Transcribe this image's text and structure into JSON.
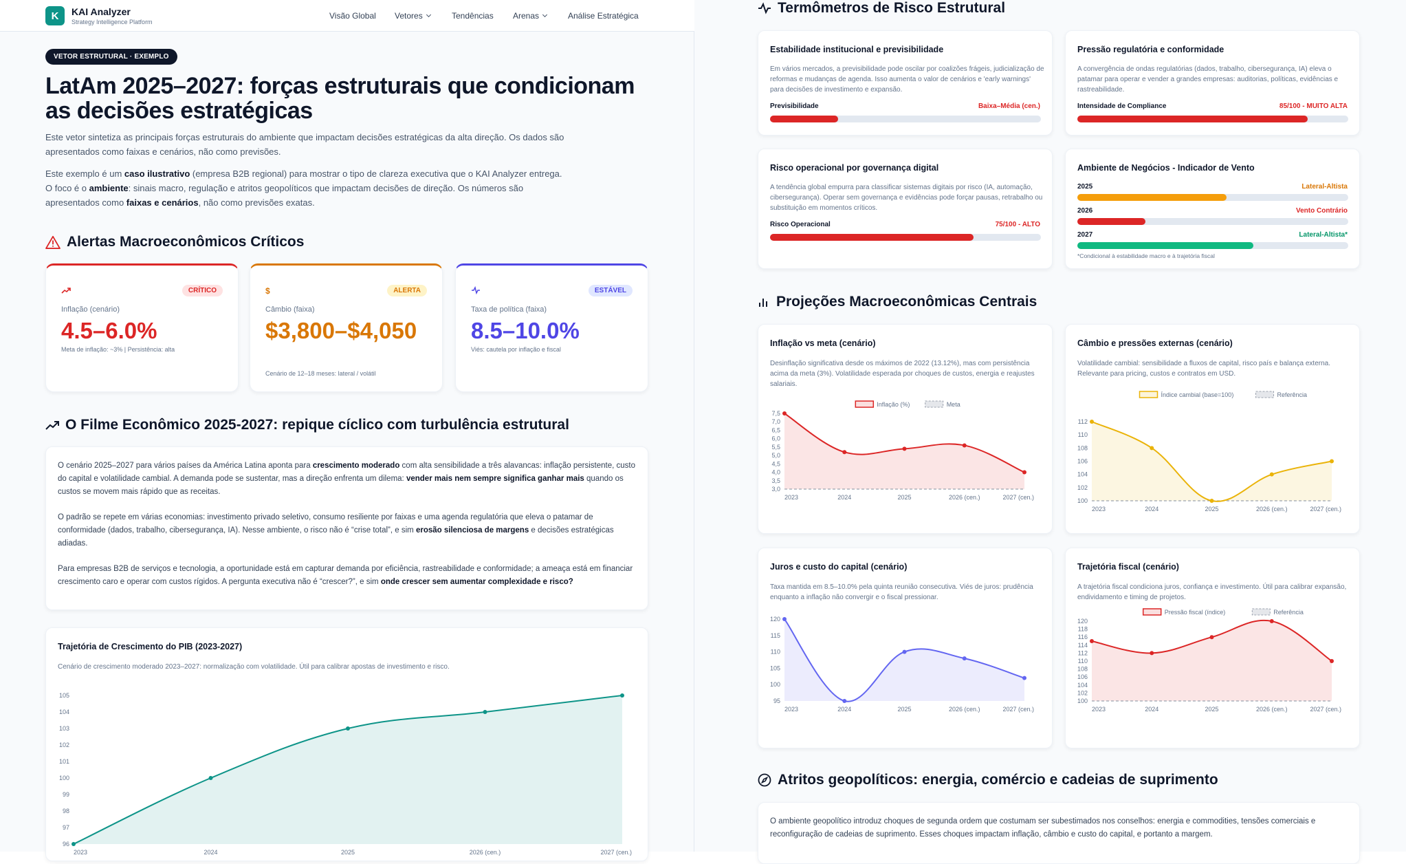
{
  "nav": {
    "brand": "KAI Analyzer",
    "subtitle": "Strategy Intelligence Platform",
    "logo_letter": "K",
    "items": [
      {
        "label": "Visão Global",
        "dropdown": false
      },
      {
        "label": "Vetores",
        "dropdown": true
      },
      {
        "label": "Tendências",
        "dropdown": false
      },
      {
        "label": "Arenas",
        "dropdown": true
      },
      {
        "label": "Análise Estratégica",
        "dropdown": false
      }
    ]
  },
  "hero": {
    "pill": "VETOR ESTRUTURAL · EXEMPLO",
    "title": "LatAm 2025–2027: forças estruturais que condicionam as decisões estratégicas",
    "lead1": "Este vetor sintetiza as principais forças estruturais do ambiente que impactam decisões estratégicas da alta direção. Os dados são apresentados como faixas e cenários, não como previsões.",
    "lead2": [
      {
        "t": "Este exemplo é um "
      },
      {
        "t": "caso ilustrativo",
        "b": true
      },
      {
        "t": " (empresa B2B regional) para mostrar o tipo de clareza executiva que o KAI Analyzer entrega. O foco é o "
      },
      {
        "t": "ambiente",
        "b": true
      },
      {
        "t": ": sinais macro, regulação e atritos geopolíticos que impactam decisões de direção. Os números são apresentados como "
      },
      {
        "t": "faixas e cenários",
        "b": true
      },
      {
        "t": ", não como previsões exatas."
      }
    ]
  },
  "alerts": {
    "title": "Alertas Macroeconômicos Críticos",
    "cards": [
      {
        "icon": "trend-up-icon",
        "badge": "CRÍTICO",
        "label": "Inflação (cenário)",
        "value": "4.5–6.0%",
        "note": "Meta de inflação: ~3% | Persistência: alta",
        "color": "#dc2626",
        "badge_bg": "#fee2e2"
      },
      {
        "icon": "dollar-icon",
        "badge": "ALERTA",
        "label": "Câmbio (faixa)",
        "value": "$3,800–$4,050",
        "note": "Cenário de 12–18 meses: lateral / volátil",
        "color": "#d97706",
        "badge_bg": "#fef3c7"
      },
      {
        "icon": "pulse-icon",
        "badge": "ESTÁVEL",
        "label": "Taxa de política (faixa)",
        "value": "8.5–10.0%",
        "note": "Viés: cautela por inflação e fiscal",
        "color": "#4f46e5",
        "badge_bg": "#e0e7ff"
      }
    ]
  },
  "film": {
    "title": "O Filme Econômico 2025-2027: repique cíclico com turbulência estrutural",
    "paragraphs": [
      [
        {
          "t": "O cenário 2025–2027 para vários países da América Latina aponta para "
        },
        {
          "t": "crescimento moderado",
          "b": true
        },
        {
          "t": " com alta sensibilidade a três alavancas: inflação persistente, custo do capital e volatilidade cambial. A demanda pode se sustentar, mas a direção enfrenta um dilema: "
        },
        {
          "t": "vender mais nem sempre significa ganhar mais",
          "b": true
        },
        {
          "t": " quando os custos se movem mais rápido que as receitas."
        }
      ],
      [
        {
          "t": "O padrão se repete em várias economias: investimento privado seletivo, consumo resiliente por faixas e uma agenda regulatória que eleva o patamar de conformidade (dados, trabalho, cibersegurança, IA). Nesse ambiente, o risco não é “crise total”, e sim "
        },
        {
          "t": "erosão silenciosa de margens",
          "b": true
        },
        {
          "t": " e decisões estratégicas adiadas."
        }
      ],
      [
        {
          "t": "Para empresas B2B de serviços e tecnologia, a oportunidade está em capturar demanda por eficiência, rastreabilidade e conformidade; a ameaça está em financiar crescimento caro e operar com custos rígidos. A pergunta executiva não é “crescer?”, e sim "
        },
        {
          "t": "onde crescer sem aumentar complexidade e risco?",
          "b": true
        }
      ]
    ]
  },
  "gdp_chart": {
    "title": "Trajetória de Crescimento do PIB (2023-2027)",
    "desc": "Cenário de crescimento moderado 2023–2027: normalização com volatilidade. Útil para calibrar apostas de investimento e risco."
  },
  "risk": {
    "title": "Termômetros de Risco Estrutural",
    "cards": [
      {
        "title": "Estabilidade institucional e previsibilidade",
        "desc": "Em vários mercados, a previsibilidade pode oscilar por coalizões frágeis, judicialização de reformas e mudanças de agenda. Isso aumenta o valor de cenários e 'early warnings' para decisões de investimento e expansão.",
        "bar_label": "Previsibilidade",
        "bar_value": "Baixa–Média (cen.)",
        "level": 0.25,
        "color": "#dc2626"
      },
      {
        "title": "Pressão regulatória e conformidade",
        "desc": "A convergência de ondas regulatórias (dados, trabalho, cibersegurança, IA) eleva o patamar para operar e vender a grandes empresas: auditorias, políticas, evidências e rastreabilidade.",
        "bar_label": "Intensidade de Compliance",
        "bar_value": "85/100 - MUITO ALTA",
        "level": 0.85,
        "color": "#dc2626"
      },
      {
        "title": "Risco operacional por governança digital",
        "desc": "A tendência global empurra para classificar sistemas digitais por risco (IA, automação, cibersegurança). Operar sem governança e evidências pode forçar pausas, retrabalho ou substituição em momentos críticos.",
        "bar_label": "Risco Operacional",
        "bar_value": "75/100 - ALTO",
        "level": 0.75,
        "color": "#dc2626"
      }
    ],
    "wind": {
      "title": "Ambiente de Negócios - Indicador de Vento",
      "rows": [
        {
          "year": "2025",
          "label": "Lateral-Altista",
          "level": 0.55,
          "color": "#f59e0b",
          "text_color": "#d97706"
        },
        {
          "year": "2026",
          "label": "Vento Contrário",
          "level": 0.25,
          "color": "#dc2626",
          "text_color": "#dc2626"
        },
        {
          "year": "2027",
          "label": "Lateral-Altista*",
          "level": 0.65,
          "color": "#10b981",
          "text_color": "#059669"
        }
      ],
      "footnote": "*Condicional à estabilidade macro e à trajetória fiscal"
    }
  },
  "projections": {
    "title": "Projeções Macroeconômicas Centrais",
    "cards": [
      {
        "title": "Inflação vs meta (cenário)",
        "desc": "Desinflação significativa desde os máximos de 2022 (13.12%), mas com persistência acima da meta (3%). Volatilidade esperada por choques de custos, energia e reajustes salariais."
      },
      {
        "title": "Câmbio e pressões externas (cenário)",
        "desc": "Volatilidade cambial: sensibilidade a fluxos de capital, risco país e balança externa. Relevante para pricing, custos e contratos em USD."
      },
      {
        "title": "Juros e custo do capital (cenário)",
        "desc": "Taxa mantida em 8.5–10.0% pela quinta reunião consecutiva. Viés de juros: prudência enquanto a inflação não convergir e o fiscal pressionar."
      },
      {
        "title": "Trajetória fiscal (cenário)",
        "desc": "A trajetória fiscal condiciona juros, confiança e investimento. Útil para calibrar expansão, endividamento e timing de projetos."
      }
    ]
  },
  "geo": {
    "title": "Atritos geopolíticos: energia, comércio e cadeias de suprimento",
    "text": "O ambiente geopolítico introduz choques de segunda ordem que costumam ser subestimados nos conselhos: energia e commodities, tensões comerciais e reconfiguração de cadeias de suprimento. Esses choques impactam inflação, câmbio e custo do capital, e portanto a margem."
  },
  "chart_data": [
    {
      "type": "area",
      "title": "Trajetória de Crescimento do PIB (2023-2027)",
      "categories": [
        "2023",
        "2024",
        "2025",
        "2026 (cen.)",
        "2027 (cen.)"
      ],
      "series": [
        {
          "values": [
            96,
            100,
            103,
            104,
            105
          ],
          "color": "#0d9488"
        }
      ],
      "ylim": [
        96,
        105
      ],
      "yticks": [
        96,
        97,
        98,
        99,
        100,
        101,
        102,
        103,
        104,
        105
      ],
      "grid": false
    },
    {
      "type": "area",
      "title": "Inflação vs meta (cenário)",
      "categories": [
        "2023",
        "2024",
        "2025",
        "2026 (cen.)",
        "2027 (cen.)"
      ],
      "series": [
        {
          "name": "Inflação (%)",
          "values": [
            7.5,
            5.2,
            5.4,
            5.6,
            4.0
          ],
          "color": "#dc2626"
        }
      ],
      "reference": {
        "name": "Meta",
        "value": 3.0
      },
      "ylim": [
        3.0,
        7.5
      ],
      "yticks": [
        "3,0",
        "3,5",
        "4,0",
        "4,5",
        "5,0",
        "5,5",
        "6,0",
        "6,5",
        "7,0",
        "7,5"
      ],
      "legend": "top-center"
    },
    {
      "type": "area",
      "title": "Câmbio e pressões externas (cenário)",
      "categories": [
        "2023",
        "2024",
        "2025",
        "2026 (cen.)",
        "2027 (cen.)"
      ],
      "series": [
        {
          "name": "Índice cambial (base=100)",
          "values": [
            112,
            108,
            100,
            104,
            106
          ],
          "color": "#eab308"
        }
      ],
      "reference": {
        "name": "Referência",
        "value": 100
      },
      "ylim": [
        100,
        112
      ],
      "yticks": [
        100,
        102,
        104,
        106,
        108,
        110,
        112
      ],
      "legend": "top-center"
    },
    {
      "type": "area",
      "title": "Juros e custo do capital (cenário)",
      "categories": [
        "2023",
        "2024",
        "2025",
        "2026 (cen.)",
        "2027 (cen.)"
      ],
      "series": [
        {
          "values": [
            120,
            95,
            110,
            108,
            102
          ],
          "color": "#6366f1"
        }
      ],
      "ylim": [
        95,
        120
      ],
      "yticks": [
        95,
        100,
        105,
        110,
        115,
        120
      ]
    },
    {
      "type": "area",
      "title": "Trajetória fiscal (cenário)",
      "categories": [
        "2023",
        "2024",
        "2025",
        "2026 (cen.)",
        "2027 (cen.)"
      ],
      "series": [
        {
          "name": "Pressão fiscal (índice)",
          "values": [
            115,
            112,
            116,
            120,
            110
          ],
          "color": "#dc2626"
        }
      ],
      "reference": {
        "name": "Referência",
        "value": 100
      },
      "ylim": [
        100,
        120
      ],
      "yticks": [
        100,
        102,
        104,
        106,
        108,
        110,
        112,
        114,
        116,
        118,
        120
      ],
      "legend": "top-center"
    }
  ]
}
